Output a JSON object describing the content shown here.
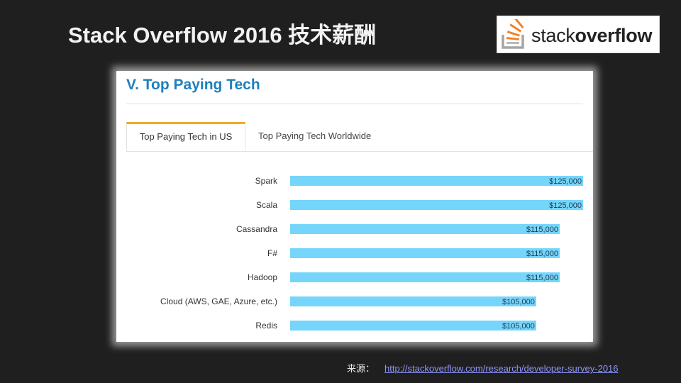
{
  "slide": {
    "title": "Stack Overflow 2016 技术薪酬",
    "logo": {
      "text_light": "stack",
      "text_bold": "overflow",
      "icon": "stackoverflow-logo-icon",
      "accent": "#f48024"
    }
  },
  "panel": {
    "section_title": "V. Top Paying Tech",
    "tabs": [
      {
        "label": "Top Paying Tech in US",
        "active": true
      },
      {
        "label": "Top Paying Tech Worldwide",
        "active": false
      }
    ]
  },
  "chart_data": {
    "type": "bar",
    "orientation": "horizontal",
    "categories": [
      "Spark",
      "Scala",
      "Cassandra",
      "F#",
      "Hadoop",
      "Cloud (AWS, GAE, Azure, etc.)",
      "Redis"
    ],
    "values": [
      125000,
      125000,
      115000,
      115000,
      115000,
      105000,
      105000
    ],
    "value_labels": [
      "$125,000",
      "$125,000",
      "$115,000",
      "$115,000",
      "$115,000",
      "$105,000",
      "$105,000"
    ],
    "title": "",
    "xlabel": "",
    "ylabel": "",
    "xlim": [
      0,
      125000
    ],
    "bar_color": "#75d5fb",
    "grid": false
  },
  "source": {
    "label": "来源：",
    "url": "http://stackoverflow.com/research/developer-survey-2016"
  }
}
